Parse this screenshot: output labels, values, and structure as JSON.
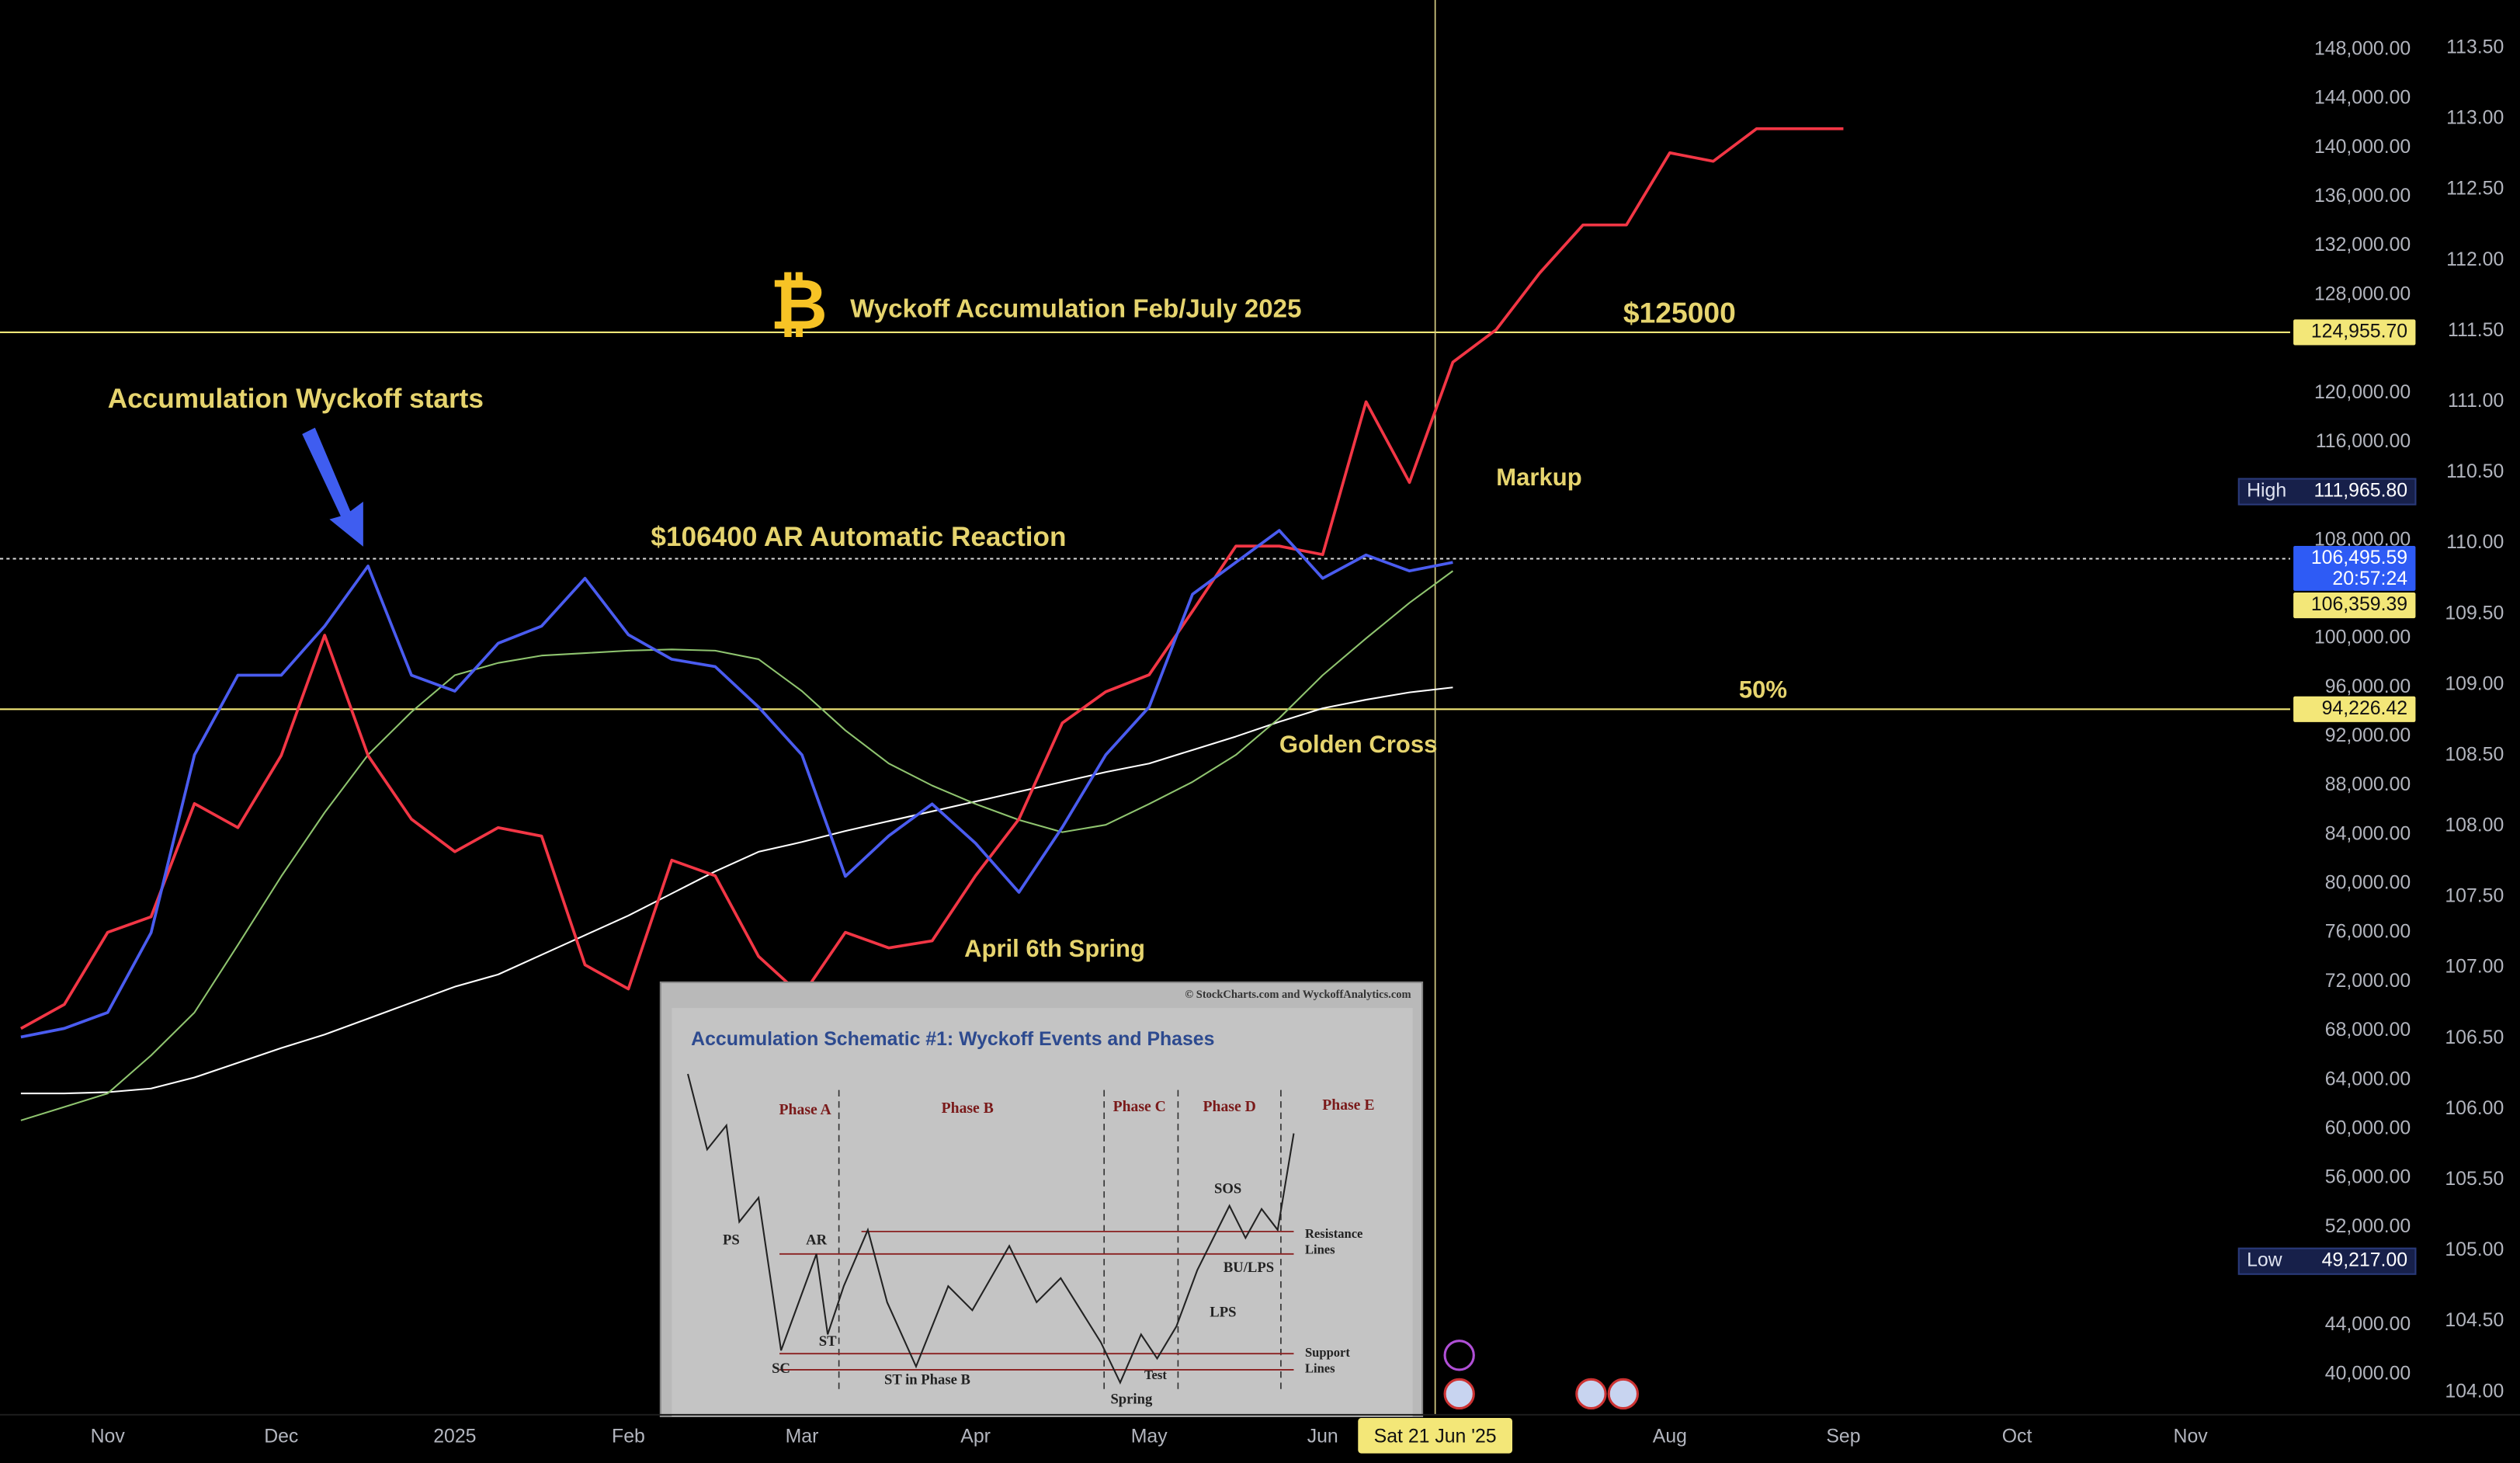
{
  "chart_data": {
    "type": "line",
    "categories": [
      null,
      null,
      "Nov",
      null,
      null,
      null,
      "Dec",
      null,
      null,
      null,
      "2025",
      null,
      null,
      null,
      "Feb",
      null,
      null,
      null,
      "Mar",
      null,
      null,
      null,
      "Apr",
      null,
      null,
      null,
      "May",
      null,
      null,
      null,
      "Jun",
      null,
      null,
      null,
      null,
      null,
      null,
      null,
      "Aug",
      null,
      null,
      null,
      "Sep",
      null,
      null,
      null,
      "Oct",
      null,
      null,
      null,
      "Nov",
      null,
      null
    ],
    "series": [
      {
        "color": "#ffffff",
        "values": [
          62900,
          62900,
          63000,
          63300,
          64200,
          65400,
          66600,
          67700,
          69000,
          70300,
          71600,
          72600,
          74200,
          75800,
          77400,
          79200,
          81000,
          82600,
          83400,
          84300,
          85100,
          85900,
          86700,
          87500,
          88300,
          89100,
          89800,
          90900,
          92000,
          93200,
          94300,
          95000,
          95600,
          96000,
          null,
          null,
          null,
          null,
          null,
          null,
          null,
          null,
          null,
          null,
          null,
          null,
          null,
          null,
          null,
          null,
          null,
          null,
          null
        ]
      },
      {
        "color": "#8fc46f",
        "values": [
          60700,
          61800,
          62900,
          66000,
          69500,
          75000,
          80600,
          85800,
          90500,
          94000,
          97000,
          98000,
          98600,
          98800,
          99000,
          99100,
          99000,
          98300,
          95700,
          92500,
          89800,
          88000,
          86500,
          85200,
          84200,
          84800,
          86500,
          88300,
          90500,
          93500,
          97000,
          100000,
          102900,
          105500,
          null,
          null,
          null,
          null,
          null,
          null,
          null,
          null,
          null,
          null,
          null,
          null,
          null,
          null,
          null,
          null,
          null,
          null,
          null
        ]
      },
      {
        "color": "#f23645",
        "axis": "y2",
        "values": [
          106.57,
          106.74,
          107.25,
          107.36,
          108.16,
          107.99,
          108.5,
          109.35,
          108.5,
          108.05,
          107.82,
          107.99,
          107.93,
          107.02,
          106.85,
          107.76,
          107.65,
          107.08,
          106.8,
          107.25,
          107.14,
          107.19,
          107.65,
          108.05,
          108.73,
          108.95,
          109.07,
          109.52,
          109.98,
          109.98,
          109.92,
          111.0,
          110.43,
          111.28,
          111.51,
          111.91,
          112.25,
          112.25,
          112.76,
          112.7,
          112.93,
          112.93,
          112.93,
          null,
          null,
          null,
          null,
          null,
          null,
          null,
          null,
          null,
          null
        ]
      },
      {
        "color": "#4a5cf0",
        "values": [
          67500,
          68200,
          69500,
          76000,
          90500,
          97000,
          97000,
          101000,
          105900,
          97000,
          95700,
          99600,
          101000,
          104900,
          100300,
          98300,
          97700,
          94400,
          90500,
          80600,
          83900,
          86500,
          83300,
          79300,
          84600,
          90500,
          94400,
          103600,
          106200,
          108800,
          104900,
          106800,
          105500,
          106200,
          null,
          null,
          null,
          null,
          null,
          null,
          null,
          null,
          null,
          null,
          null,
          null,
          null,
          null,
          null,
          null,
          null,
          null,
          null
        ]
      }
    ],
    "ylim": [
      36700,
      152050
    ],
    "yticks": [
      {
        "value": 148000,
        "label": "148,000.00"
      },
      {
        "value": 144000,
        "label": "144,000.00"
      },
      {
        "value": 140000,
        "label": "140,000.00"
      },
      {
        "value": 136000,
        "label": "136,000.00"
      },
      {
        "value": 132000,
        "label": "132,000.00"
      },
      {
        "value": 128000,
        "label": "128,000.00"
      },
      {
        "value": 120000,
        "label": "120,000.00"
      },
      {
        "value": 116000,
        "label": "116,000.00"
      },
      {
        "value": 108000,
        "label": "108,000.00"
      },
      {
        "value": 100000,
        "label": "100,000.00"
      },
      {
        "value": 96000,
        "label": "96,000.00"
      },
      {
        "value": 92000,
        "label": "92,000.00"
      },
      {
        "value": 88000,
        "label": "88,000.00"
      },
      {
        "value": 84000,
        "label": "84,000.00"
      },
      {
        "value": 80000,
        "label": "80,000.00"
      },
      {
        "value": 76000,
        "label": "76,000.00"
      },
      {
        "value": 72000,
        "label": "72,000.00"
      },
      {
        "value": 68000,
        "label": "68,000.00"
      },
      {
        "value": 64000,
        "label": "64,000.00"
      },
      {
        "value": 60000,
        "label": "60,000.00"
      },
      {
        "value": 56000,
        "label": "56,000.00"
      },
      {
        "value": 52000,
        "label": "52,000.00"
      },
      {
        "value": 44000,
        "label": "44,000.00"
      },
      {
        "value": 40000,
        "label": "40,000.00"
      }
    ],
    "y2lim": [
      103.84,
      113.84
    ],
    "y2ticks": [
      {
        "value": 113.5,
        "label": "113.50"
      },
      {
        "value": 113,
        "label": "113.00"
      },
      {
        "value": 112.5,
        "label": "112.50"
      },
      {
        "value": 112,
        "label": "112.00"
      },
      {
        "value": 111.5,
        "label": "111.50"
      },
      {
        "value": 111,
        "label": "111.00"
      },
      {
        "value": 110.5,
        "label": "110.50"
      },
      {
        "value": 110,
        "label": "110.00"
      },
      {
        "value": 109.5,
        "label": "109.50"
      },
      {
        "value": 109,
        "label": "109.00"
      },
      {
        "value": 108.5,
        "label": "108.50"
      },
      {
        "value": 108,
        "label": "108.00"
      },
      {
        "value": 107.5,
        "label": "107.50"
      },
      {
        "value": 107,
        "label": "107.00"
      },
      {
        "value": 106.5,
        "label": "106.50"
      },
      {
        "value": 106,
        "label": "106.00"
      },
      {
        "value": 105.5,
        "label": "105.50"
      },
      {
        "value": 105,
        "label": "105.00"
      },
      {
        "value": 104.5,
        "label": "104.50"
      },
      {
        "value": 104,
        "label": "104.00"
      }
    ],
    "grid": false,
    "levels": [
      {
        "value": 124955.7,
        "label": "124,955.70",
        "color": "#f3e778",
        "line": "solid"
      },
      {
        "value": 106495.59,
        "label": "106,495.59",
        "sublabel": "20:57:24",
        "color": "#2e5bf5",
        "line": "dotted"
      },
      {
        "value": 106359.39,
        "label": "106,359.39",
        "color": "#f3e778",
        "line": "none"
      },
      {
        "value": 94226.42,
        "label": "94,226.42",
        "color": "#f3e778",
        "line": "solid"
      }
    ],
    "extremes": [
      {
        "name": "High",
        "value": 111965.8,
        "label": "111,965.80"
      },
      {
        "name": "Low",
        "value": 49217,
        "label": "49,217.00"
      }
    ],
    "crosshair_label": "Sat 21 Jun '25",
    "annotations": [
      "₿",
      "Wyckoff Accumulation Feb/July 2025",
      "Accumulation Wyckoff starts",
      "$106400 AR Automatic Reaction",
      "$125000",
      "Markup",
      "50%",
      "Golden Cross",
      "April 6th Spring"
    ],
    "inset": {
      "copyright": "© StockCharts.com and WyckoffAnalytics.com",
      "title": "Accumulation Schematic #1: Wyckoff Events and Phases",
      "phases": [
        "Phase A",
        "Phase B",
        "Phase C",
        "Phase D",
        "Phase E"
      ],
      "events": [
        "PS",
        "AR",
        "SC",
        "ST",
        "ST in Phase B",
        "Spring",
        "Test",
        "SOS",
        "LPS",
        "BU/LPS"
      ],
      "resistance": [
        "Resistance",
        "Lines"
      ],
      "support": [
        "Support",
        "Lines"
      ]
    }
  }
}
